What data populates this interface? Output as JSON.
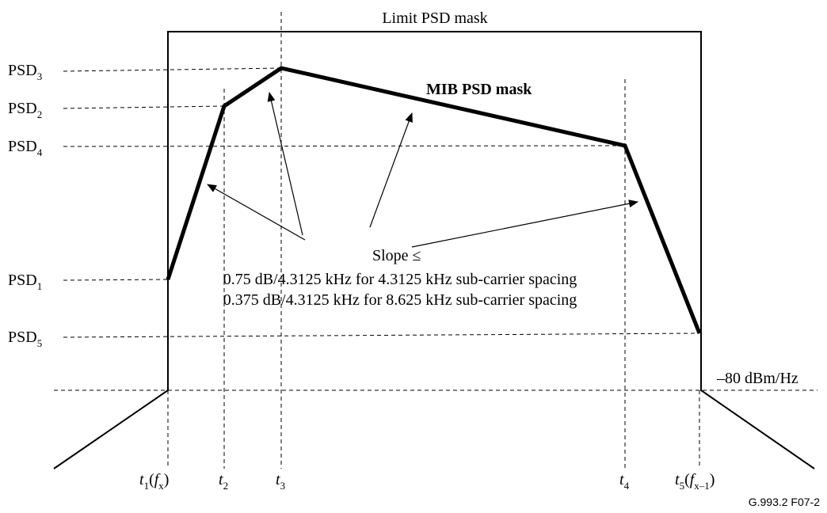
{
  "title": "Limit PSD mask",
  "mask_label": "MIB PSD mask",
  "psd_levels": [
    {
      "base": "PSD",
      "sub": "3"
    },
    {
      "base": "PSD",
      "sub": "2"
    },
    {
      "base": "PSD",
      "sub": "4"
    },
    {
      "base": "PSD",
      "sub": "1"
    },
    {
      "base": "PSD",
      "sub": "5"
    }
  ],
  "floor_label": "–80 dBm/Hz",
  "slope": {
    "line1": "Slope ≤",
    "line2": "0.75 dB/4.3125 kHz  for 4.3125 kHz sub-carrier spacing",
    "line3": "0.375 dB/4.3125 kHz  for 8.625 kHz sub-carrier spacing"
  },
  "frequencies": [
    {
      "var": "t",
      "sub": "1",
      "open": "(",
      "arg": "f",
      "arg_sub": "x",
      "close": ")"
    },
    {
      "var": "t",
      "sub": "2"
    },
    {
      "var": "t",
      "sub": "3"
    },
    {
      "var": "t",
      "sub": "4"
    },
    {
      "var": "t",
      "sub": "5",
      "open": "(",
      "arg": "f",
      "arg_sub": "x–1",
      "close": ")"
    }
  ],
  "figure_id": "G.993.2  F07-2"
}
